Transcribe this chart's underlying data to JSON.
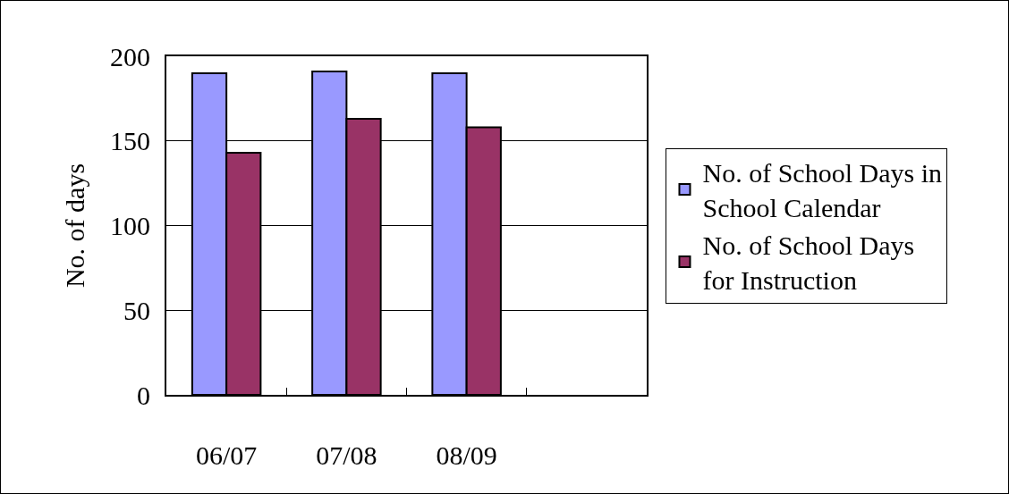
{
  "chart_data": {
    "type": "bar",
    "ylabel": "No. of days",
    "categories": [
      "06/07",
      "07/08",
      "08/09",
      null
    ],
    "series": [
      {
        "name": "No. of School Days in School Calendar",
        "color": "#9999ff",
        "values": [
          190,
          191,
          190,
          null
        ]
      },
      {
        "name": "No. of School Days for Instruction",
        "color": "#993366",
        "values": [
          143,
          163,
          158,
          null
        ]
      }
    ],
    "ylim": [
      0,
      200
    ],
    "yticks": [
      0,
      50,
      100,
      150,
      200
    ],
    "grid": "y",
    "legend": "right"
  }
}
